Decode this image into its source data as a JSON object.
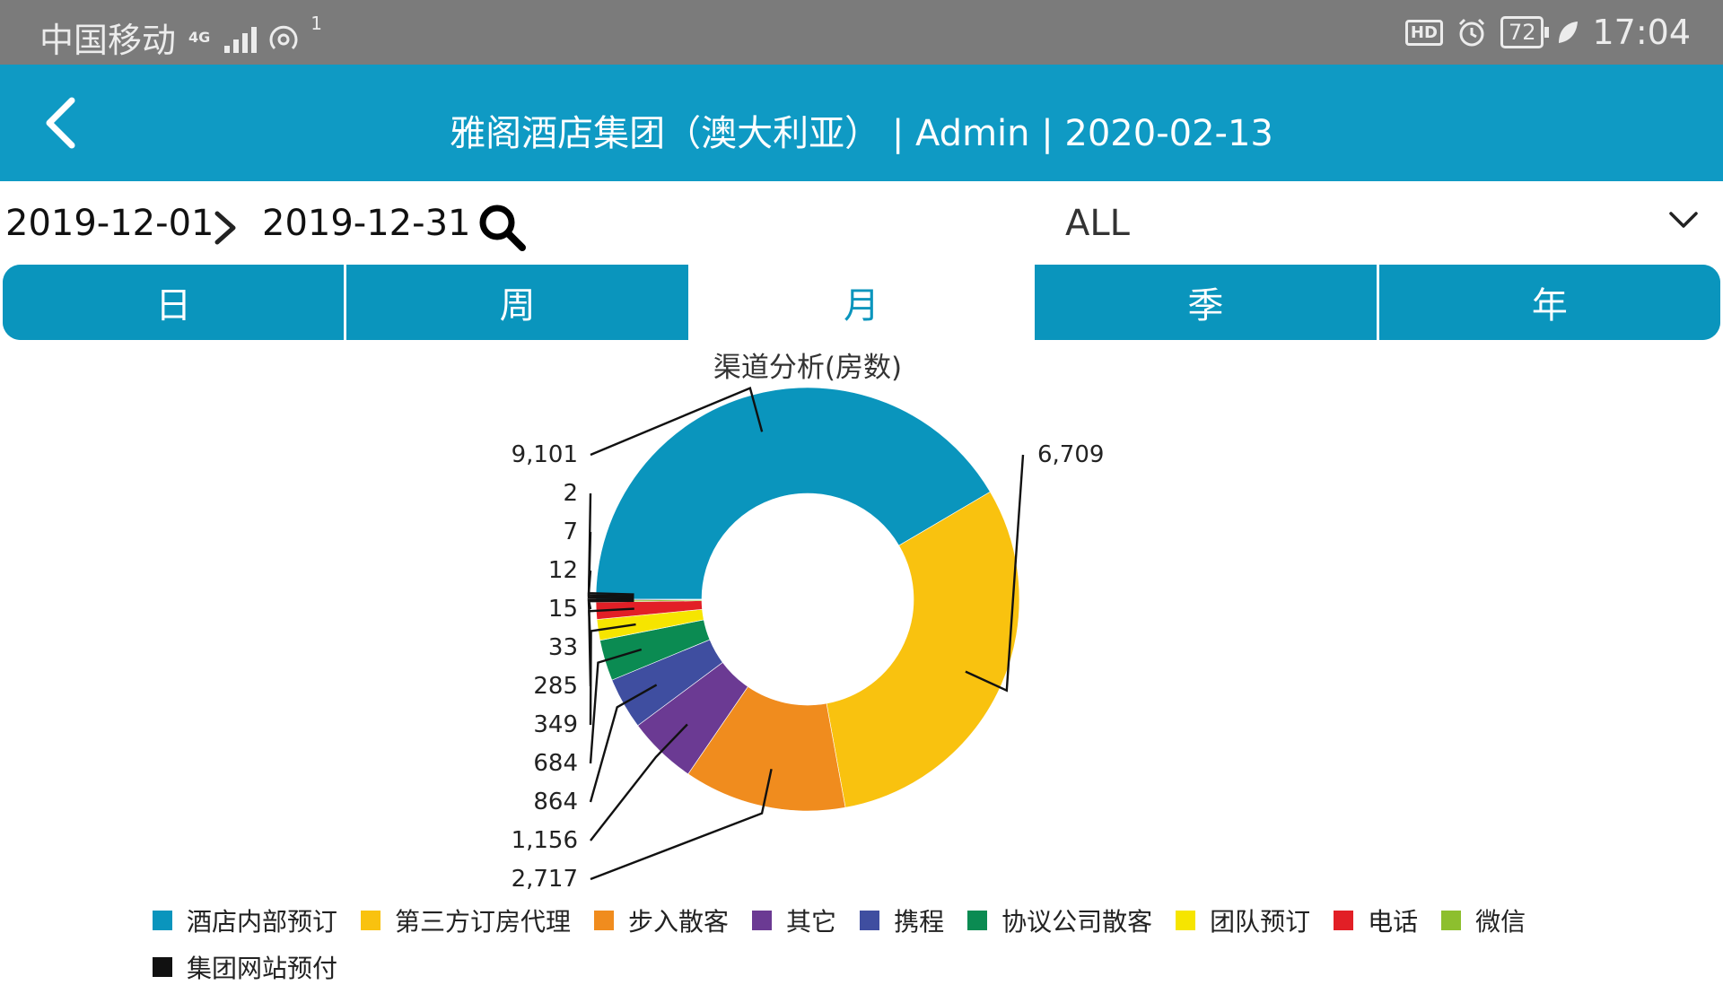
{
  "status_bar": {
    "carrier": "中国移动",
    "network": "4G",
    "hotspot_count": "1",
    "hd": "HD",
    "battery": "72",
    "time": "17:04"
  },
  "header": {
    "title": "雅阁酒店集团（澳大利亚） | Admin | 2020-02-13"
  },
  "filter": {
    "start_date": "2019-12-01",
    "end_date": "2019-12-31",
    "selected": "ALL"
  },
  "tabs": [
    {
      "label": "日",
      "active": false
    },
    {
      "label": "周",
      "active": false
    },
    {
      "label": "月",
      "active": true
    },
    {
      "label": "季",
      "active": false
    },
    {
      "label": "年",
      "active": false
    }
  ],
  "chart_data": {
    "type": "pie",
    "title": "渠道分析(房数)",
    "donut": true,
    "legend_position": "bottom",
    "categories": [
      "酒店内部预订",
      "第三方订房代理",
      "步入散客",
      "其它",
      "携程",
      "协议公司散客",
      "团队预订",
      "电话",
      "微信",
      "集团网站预付"
    ],
    "values": [
      9101,
      6709,
      2717,
      1156,
      864,
      684,
      349,
      285,
      33,
      15
    ],
    "extra_labels": [
      "2",
      "7",
      "12"
    ],
    "colors": [
      "#0a95bd",
      "#f9c20f",
      "#f08c1e",
      "#6b3a93",
      "#3f4ea0",
      "#0b8b52",
      "#f6e500",
      "#e21f26",
      "#8dbf2e",
      "#111111"
    ]
  }
}
